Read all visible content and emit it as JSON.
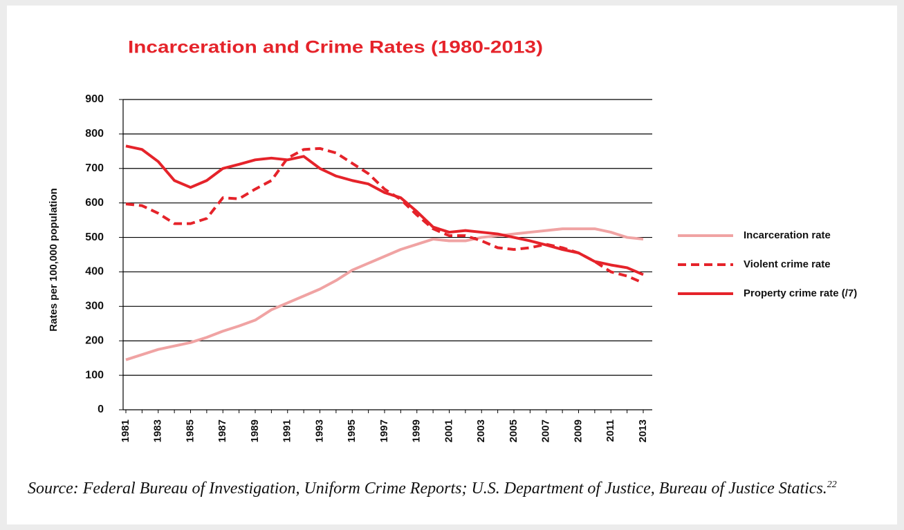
{
  "chart_data": {
    "type": "line",
    "title": "Incarceration and Crime Rates (1980-2013)",
    "y_label": "Rates per 100,000 population",
    "source": "Source: Federal Bureau of Investigation, Uniform Crime Reports; U.S. Department of Justice, Bureau of Justice Statics.",
    "source_note": "22",
    "categories": [
      "1981",
      null,
      "1983",
      null,
      "1985",
      null,
      "1987",
      null,
      "1989",
      null,
      "1991",
      null,
      "1993",
      null,
      "1995",
      null,
      "1997",
      null,
      "1999",
      null,
      "2001",
      null,
      "2003",
      null,
      "2005",
      null,
      "2007",
      null,
      "2009",
      null,
      "2011",
      null,
      "2013"
    ],
    "ylim": [
      0,
      900
    ],
    "yticks": [
      0,
      100,
      200,
      300,
      400,
      500,
      600,
      700,
      800,
      900
    ],
    "grid": true,
    "legend": "right",
    "series": [
      {
        "name": "Incarceration rate",
        "color": "#f0a3a3",
        "dashed": false,
        "values": [
          145,
          160,
          175,
          185,
          195,
          210,
          228,
          243,
          260,
          290,
          310,
          330,
          350,
          375,
          405,
          425,
          445,
          465,
          480,
          495,
          490,
          490,
          500,
          505,
          510,
          515,
          520,
          525,
          525,
          525,
          515,
          500,
          495
        ]
      },
      {
        "name": "Violent crime rate",
        "color": "#e5232a",
        "dashed": true,
        "values": [
          597,
          592,
          570,
          540,
          540,
          555,
          615,
          612,
          640,
          665,
          730,
          755,
          758,
          745,
          715,
          685,
          640,
          610,
          565,
          525,
          505,
          505,
          490,
          470,
          465,
          470,
          480,
          470,
          455,
          430,
          400,
          388,
          368
        ]
      },
      {
        "name": "Property crime rate (/7)",
        "color": "#e5232a",
        "dashed": false,
        "values": [
          765,
          755,
          720,
          665,
          645,
          665,
          700,
          712,
          725,
          730,
          725,
          735,
          700,
          678,
          665,
          655,
          630,
          615,
          575,
          530,
          515,
          520,
          515,
          510,
          500,
          490,
          478,
          465,
          455,
          430,
          420,
          412,
          392
        ]
      }
    ]
  }
}
